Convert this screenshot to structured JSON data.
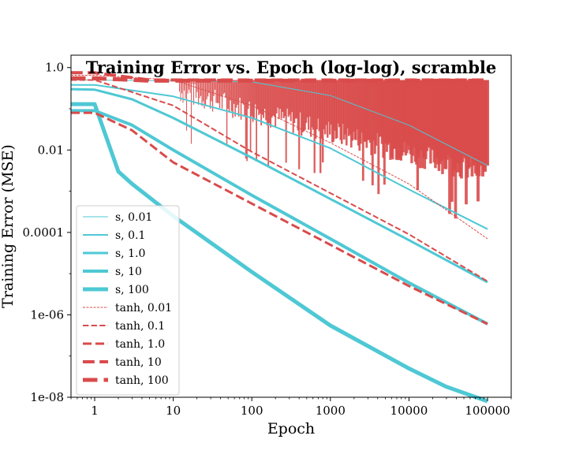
{
  "chart_data": {
    "type": "line",
    "title": "Training Error vs. Epoch (log-log), scramble",
    "xlabel": "Epoch",
    "ylabel": "Training Error (MSE)",
    "xscale": "log",
    "yscale": "log",
    "xlim": [
      0.5,
      200000
    ],
    "ylim": [
      1e-08,
      2
    ],
    "x_ticks": [
      {
        "value": 1,
        "label": "1"
      },
      {
        "value": 10,
        "label": "10"
      },
      {
        "value": 100,
        "label": "100"
      },
      {
        "value": 1000,
        "label": "1000"
      },
      {
        "value": 10000,
        "label": "10000"
      },
      {
        "value": 100000,
        "label": "100000"
      }
    ],
    "y_ticks": [
      {
        "value": 1e-08,
        "label": "1e-08"
      },
      {
        "value": 1e-06,
        "label": "1e-06"
      },
      {
        "value": 0.0001,
        "label": "0.0001"
      },
      {
        "value": 0.01,
        "label": "0.01"
      },
      {
        "value": 1.0,
        "label": "1.0"
      }
    ],
    "grid": false,
    "legend_position": "lower-left",
    "colors": {
      "s": "#4ec8d4",
      "tanh": "#d94b4b"
    },
    "series": [
      {
        "name": "s, 0.01",
        "color": "#4ec8d4",
        "dash": "solid",
        "width": 1,
        "x": [
          0.5,
          1,
          100,
          1000,
          10000,
          100000
        ],
        "y": [
          0.5,
          0.5,
          0.45,
          0.21,
          0.04,
          0.0042
        ]
      },
      {
        "name": "s, 0.1",
        "color": "#4ec8d4",
        "dash": "solid",
        "width": 2,
        "x": [
          0.5,
          1,
          10,
          100,
          1000,
          10000,
          100000
        ],
        "y": [
          0.38,
          0.38,
          0.2,
          0.06,
          0.011,
          0.0011,
          0.00012
        ]
      },
      {
        "name": "s, 1.0",
        "color": "#4ec8d4",
        "dash": "solid",
        "width": 3,
        "x": [
          0.5,
          1,
          3,
          10,
          100,
          1000,
          10000,
          100000
        ],
        "y": [
          0.3,
          0.29,
          0.17,
          0.06,
          0.0065,
          0.00065,
          6.5e-05,
          6.2e-06
        ]
      },
      {
        "name": "s, 10",
        "color": "#4ec8d4",
        "dash": "solid",
        "width": 4,
        "x": [
          0.5,
          1,
          3,
          10,
          100,
          1000,
          10000,
          100000
        ],
        "y": [
          0.09,
          0.09,
          0.04,
          0.01,
          0.0008,
          7e-05,
          6e-06,
          6e-07
        ]
      },
      {
        "name": "s, 100",
        "color": "#4ec8d4",
        "dash": "solid",
        "width": 5,
        "x": [
          0.5,
          1,
          2,
          3,
          10,
          100,
          1000,
          10000,
          30000,
          100000
        ],
        "y": [
          0.13,
          0.13,
          0.003,
          0.0015,
          0.00025,
          1.1e-05,
          5.5e-07,
          5e-08,
          1.8e-08,
          8e-09
        ]
      },
      {
        "name": "tanh, 0.01",
        "color": "#d94b4b",
        "dash": "dotted",
        "width": 1,
        "x": [
          0.5,
          1,
          10,
          100,
          1000,
          10000,
          100000
        ],
        "y": [
          0.65,
          0.65,
          0.5,
          0.12,
          0.015,
          0.0015,
          7e-05
        ]
      },
      {
        "name": "tanh, 0.1",
        "color": "#d94b4b",
        "dash": "dashed",
        "width": 2,
        "x": [
          0.5,
          1,
          10,
          100,
          1000,
          10000,
          100000
        ],
        "y": [
          0.5,
          0.5,
          0.12,
          0.009,
          0.0009,
          9e-05,
          6.5e-06
        ]
      },
      {
        "name": "tanh, 1.0",
        "color": "#d94b4b",
        "dash": "dashed",
        "width": 3,
        "x": [
          0.5,
          1,
          3,
          10,
          100,
          1000,
          10000,
          100000
        ],
        "y": [
          0.08,
          0.08,
          0.03,
          0.005,
          0.0005,
          5e-05,
          5e-06,
          6e-07
        ]
      },
      {
        "name": "tanh, 10",
        "color": "#d94b4b",
        "dash": "dashed",
        "width": 4,
        "x": [
          0.5,
          1,
          5,
          100,
          100000
        ],
        "y": [
          0.75,
          0.75,
          0.5,
          0.5,
          0.5
        ]
      },
      {
        "name": "tanh, 100",
        "color": "#d94b4b",
        "dash": "dashed",
        "width": 5,
        "x": [
          0.5,
          1,
          5,
          100,
          100000
        ],
        "y": [
          0.55,
          0.55,
          0.48,
          0.48,
          0.48
        ]
      }
    ],
    "noise_band": {
      "color": "#d94b4b",
      "x_start": 12,
      "x_end": 100000,
      "upper": 0.5,
      "lower_start": 0.2,
      "lower_end": 0.002
    }
  }
}
